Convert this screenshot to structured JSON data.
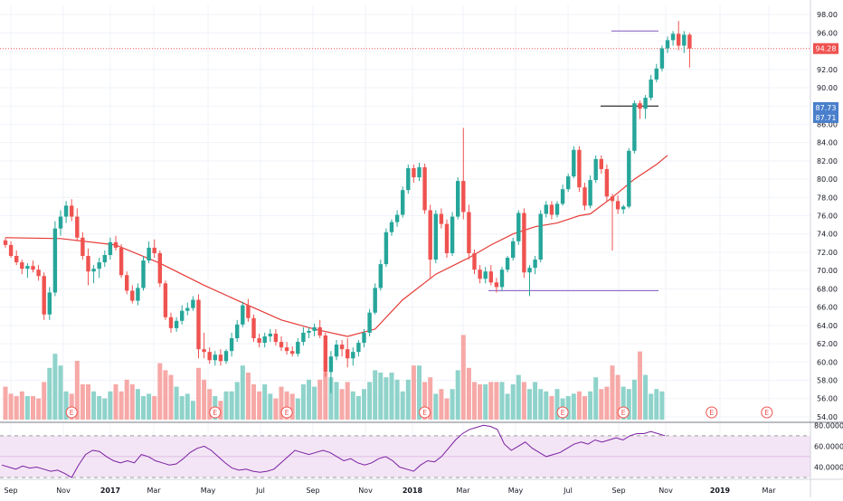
{
  "chart_data": {
    "type": "candlestick",
    "price_axis": {
      "ticks": [
        "98.00",
        "96.00",
        "94.00",
        "92.00",
        "90.00",
        "88.00",
        "86.00",
        "84.00",
        "82.00",
        "80.00",
        "78.00",
        "76.00",
        "74.00",
        "72.00",
        "70.00",
        "68.00",
        "66.00",
        "64.00",
        "62.00",
        "60.00",
        "58.00",
        "56.00",
        "54.00"
      ],
      "range": [
        53.5,
        99
      ],
      "last_price_label": "94.28",
      "last_price": 94.28,
      "marker_labels": [
        "87.73",
        "87.71"
      ],
      "marker_values": [
        87.73,
        87.71
      ]
    },
    "time_axis": {
      "labels": [
        "Sep",
        "Nov",
        "2017",
        "Mar",
        "May",
        "Jul",
        "Sep",
        "Nov",
        "2018",
        "Mar",
        "May",
        "Jul",
        "Sep",
        "Nov",
        "2019",
        "Mar"
      ],
      "bold_labels": [
        "2017",
        "2018",
        "2019"
      ]
    },
    "candles": [
      [
        73.3,
        73.6,
        72.5,
        72.8
      ],
      [
        72.8,
        73.2,
        71.4,
        71.6
      ],
      [
        71.6,
        72.2,
        70.6,
        70.9
      ],
      [
        70.9,
        71.2,
        69.6,
        70.2
      ],
      [
        70.2,
        70.8,
        69.2,
        70.5
      ],
      [
        70.5,
        71.1,
        69.8,
        70.1
      ],
      [
        70.1,
        70.6,
        68.9,
        69.4
      ],
      [
        69.4,
        69.8,
        64.6,
        65.2
      ],
      [
        65.2,
        68.2,
        64.6,
        67.6
      ],
      [
        67.6,
        75.4,
        67.2,
        74.6
      ],
      [
        74.6,
        76.6,
        73.8,
        75.9
      ],
      [
        75.9,
        77.6,
        75.2,
        77.1
      ],
      [
        77.1,
        77.8,
        75.4,
        75.9
      ],
      [
        75.9,
        76.8,
        73.2,
        73.6
      ],
      [
        73.6,
        74.2,
        71.2,
        71.6
      ],
      [
        71.6,
        72.4,
        68.4,
        69.9
      ],
      [
        69.9,
        70.6,
        68.6,
        70.2
      ],
      [
        70.2,
        71.4,
        69.2,
        70.9
      ],
      [
        70.9,
        72.2,
        70.4,
        71.7
      ],
      [
        71.7,
        73.6,
        71.2,
        73.1
      ],
      [
        73.1,
        73.8,
        72.2,
        72.5
      ],
      [
        72.5,
        72.9,
        69.2,
        69.5
      ],
      [
        69.5,
        69.9,
        67.4,
        67.8
      ],
      [
        67.8,
        68.4,
        66.4,
        66.7
      ],
      [
        66.7,
        68.6,
        66.2,
        68.1
      ],
      [
        68.1,
        71.6,
        67.8,
        71.1
      ],
      [
        71.1,
        73.2,
        70.8,
        72.5
      ],
      [
        72.5,
        73.4,
        71.4,
        71.9
      ],
      [
        71.9,
        72.2,
        68.2,
        68.6
      ],
      [
        68.6,
        68.9,
        64.6,
        64.9
      ],
      [
        64.9,
        65.4,
        63.2,
        63.7
      ],
      [
        63.7,
        64.9,
        63.3,
        64.5
      ],
      [
        64.5,
        66.2,
        64.1,
        65.6
      ],
      [
        65.6,
        66.5,
        65.1,
        65.9
      ],
      [
        65.9,
        67.2,
        65.6,
        66.8
      ],
      [
        66.8,
        67.4,
        60.4,
        61.4
      ],
      [
        61.4,
        63.2,
        60.4,
        61.1
      ],
      [
        61.1,
        61.6,
        59.8,
        60.2
      ],
      [
        60.2,
        61.2,
        59.6,
        60.8
      ],
      [
        60.8,
        61.4,
        59.6,
        60.1
      ],
      [
        60.1,
        61.4,
        59.8,
        61.2
      ],
      [
        61.2,
        63.2,
        60.6,
        62.6
      ],
      [
        62.6,
        64.6,
        62.2,
        64.1
      ],
      [
        64.1,
        66.6,
        63.8,
        66.2
      ],
      [
        66.2,
        66.9,
        64.4,
        64.8
      ],
      [
        64.8,
        65.2,
        62.2,
        62.6
      ],
      [
        62.6,
        63.1,
        61.6,
        62.1
      ],
      [
        62.1,
        63.2,
        61.6,
        62.8
      ],
      [
        62.8,
        63.6,
        62.2,
        63.1
      ],
      [
        63.1,
        63.6,
        61.8,
        62.2
      ],
      [
        62.2,
        62.8,
        61.2,
        61.6
      ],
      [
        61.6,
        62.2,
        60.8,
        61.2
      ],
      [
        61.2,
        61.7,
        60.6,
        60.9
      ],
      [
        60.9,
        62.6,
        60.6,
        62.2
      ],
      [
        62.2,
        63.8,
        61.8,
        63.2
      ],
      [
        63.2,
        63.8,
        62.6,
        63.4
      ],
      [
        63.4,
        64.2,
        62.8,
        63.8
      ],
      [
        63.8,
        64.6,
        62.6,
        62.9
      ],
      [
        62.9,
        63.2,
        58.4,
        58.9
      ],
      [
        58.9,
        61.2,
        56.6,
        60.6
      ],
      [
        60.6,
        62.4,
        60.2,
        61.9
      ],
      [
        61.9,
        62.4,
        60.6,
        61.4
      ],
      [
        61.4,
        62.6,
        59.4,
        60.4
      ],
      [
        60.4,
        61.6,
        59.6,
        61.1
      ],
      [
        61.1,
        62.4,
        60.6,
        62.1
      ],
      [
        62.1,
        63.6,
        61.6,
        63.2
      ],
      [
        63.2,
        65.8,
        62.8,
        65.4
      ],
      [
        65.4,
        68.6,
        65.2,
        68.1
      ],
      [
        68.1,
        71.2,
        67.8,
        70.7
      ],
      [
        70.7,
        74.6,
        70.4,
        74.2
      ],
      [
        74.2,
        75.6,
        73.8,
        75.3
      ],
      [
        75.3,
        76.6,
        74.8,
        76.1
      ],
      [
        76.1,
        79.2,
        75.8,
        78.8
      ],
      [
        78.8,
        81.6,
        78.4,
        81.2
      ],
      [
        81.2,
        81.6,
        79.6,
        80.2
      ],
      [
        80.2,
        81.8,
        79.8,
        81.3
      ],
      [
        81.3,
        81.7,
        76.2,
        76.6
      ],
      [
        76.6,
        77.2,
        69.2,
        71.2
      ],
      [
        71.2,
        76.6,
        70.8,
        76.2
      ],
      [
        76.2,
        76.8,
        74.6,
        75.1
      ],
      [
        75.1,
        75.6,
        71.4,
        71.9
      ],
      [
        71.9,
        76.4,
        71.6,
        75.9
      ],
      [
        75.9,
        80.2,
        75.6,
        79.8
      ],
      [
        79.8,
        85.6,
        75.6,
        76.4
      ],
      [
        76.4,
        77.2,
        71.2,
        71.9
      ],
      [
        71.9,
        72.3,
        69.6,
        70.1
      ],
      [
        70.1,
        70.6,
        68.6,
        69.1
      ],
      [
        69.1,
        70.4,
        68.6,
        69.9
      ],
      [
        69.9,
        70.6,
        68.4,
        68.7
      ],
      [
        68.7,
        69.2,
        67.6,
        68.2
      ],
      [
        68.2,
        70.4,
        67.8,
        70.1
      ],
      [
        70.1,
        71.6,
        69.8,
        71.4
      ],
      [
        71.4,
        73.6,
        71.1,
        73.2
      ],
      [
        73.2,
        76.6,
        72.8,
        76.3
      ],
      [
        76.3,
        76.8,
        69.2,
        69.8
      ],
      [
        69.8,
        70.6,
        67.2,
        70.3
      ],
      [
        70.3,
        71.6,
        69.6,
        71.2
      ],
      [
        71.2,
        76.6,
        70.9,
        76.2
      ],
      [
        76.2,
        77.6,
        75.8,
        77.2
      ],
      [
        77.2,
        77.6,
        75.6,
        76.1
      ],
      [
        76.1,
        77.6,
        75.8,
        77.3
      ],
      [
        77.3,
        79.4,
        77.1,
        78.9
      ],
      [
        78.9,
        80.6,
        78.6,
        80.3
      ],
      [
        80.3,
        83.6,
        80.1,
        83.2
      ],
      [
        83.2,
        83.6,
        78.6,
        79.1
      ],
      [
        79.1,
        79.6,
        76.6,
        77.1
      ],
      [
        77.1,
        80.4,
        76.8,
        79.9
      ],
      [
        79.9,
        82.6,
        79.6,
        82.2
      ],
      [
        82.2,
        82.6,
        80.6,
        81.1
      ],
      [
        81.1,
        81.6,
        77.6,
        78.1
      ],
      [
        78.1,
        78.4,
        72.2,
        77.6
      ],
      [
        77.6,
        78.2,
        76.2,
        76.7
      ],
      [
        76.7,
        77.2,
        76.2,
        77.0
      ],
      [
        77.0,
        83.4,
        76.8,
        83.1
      ],
      [
        83.1,
        88.6,
        82.8,
        88.3
      ],
      [
        88.3,
        88.6,
        86.6,
        87.7
      ],
      [
        87.7,
        89.2,
        86.6,
        88.9
      ],
      [
        88.9,
        91.4,
        88.6,
        90.9
      ],
      [
        90.9,
        92.6,
        90.6,
        92.1
      ],
      [
        92.1,
        94.6,
        91.8,
        94.3
      ],
      [
        94.3,
        95.6,
        93.8,
        95.2
      ],
      [
        95.2,
        96.2,
        94.6,
        95.9
      ],
      [
        95.9,
        97.3,
        94.1,
        94.6
      ],
      [
        94.6,
        96.2,
        93.8,
        95.8
      ],
      [
        95.8,
        96.0,
        92.2,
        94.28
      ]
    ],
    "volumes": [
      1.4,
      1.1,
      1.0,
      1.2,
      1.0,
      1.0,
      0.9,
      1.6,
      2.2,
      2.8,
      2.3,
      1.2,
      1.1,
      2.5,
      1.5,
      1.5,
      1.2,
      1.0,
      0.9,
      1.2,
      1.5,
      1.2,
      1.7,
      1.5,
      1.3,
      1.0,
      1.1,
      1.0,
      2.4,
      2.1,
      1.9,
      1.4,
      1.0,
      1.1,
      0.8,
      2.2,
      1.7,
      1.3,
      1.0,
      0.8,
      1.2,
      1.2,
      1.6,
      2.3,
      2.0,
      1.5,
      1.2,
      1.5,
      1.1,
      0.9,
      1.4,
      1.2,
      1.1,
      0.9,
      1.5,
      1.7,
      1.4,
      1.7,
      2.0,
      1.8,
      1.6,
      1.3,
      1.6,
      1.2,
      1.0,
      1.3,
      1.6,
      2.1,
      2.0,
      1.8,
      2.0,
      1.7,
      1.2,
      1.7,
      2.3,
      2.3,
      1.6,
      1.8,
      1.1,
      1.3,
      0.9,
      1.3,
      2.1,
      3.6,
      2.2,
      1.6,
      1.5,
      1.5,
      1.6,
      1.6,
      1.6,
      1.1,
      1.5,
      1.9,
      1.6,
      1.3,
      1.6,
      1.3,
      1.2,
      1.0,
      1.3,
      0.9,
      1.0,
      1.1,
      1.2,
      1.0,
      1.2,
      1.8,
      1.3,
      1.4,
      2.3,
      1.9,
      1.4,
      1.3,
      1.7,
      2.9,
      1.9,
      1.1,
      1.3,
      1.2
    ],
    "moving_average": [
      [
        0,
        73.6
      ],
      [
        10,
        73.5
      ],
      [
        20,
        72.8
      ],
      [
        28,
        70.8
      ],
      [
        36,
        68.4
      ],
      [
        44,
        66.2
      ],
      [
        50,
        64.6
      ],
      [
        56,
        63.6
      ],
      [
        62,
        62.8
      ],
      [
        67,
        63.6
      ],
      [
        72,
        66.8
      ],
      [
        78,
        69.6
      ],
      [
        84,
        71.4
      ],
      [
        88,
        72.8
      ],
      [
        92,
        74.0
      ],
      [
        96,
        74.8
      ],
      [
        100,
        75.2
      ],
      [
        104,
        76.0
      ],
      [
        106,
        76.2
      ],
      [
        110,
        78.0
      ],
      [
        114,
        80.0
      ],
      [
        118,
        81.6
      ],
      [
        120,
        82.6
      ]
    ],
    "earnings_markers": [
      "E",
      "E",
      "E",
      "E",
      "E",
      "E",
      "E",
      "E",
      "E"
    ],
    "earnings_indices": [
      12,
      38,
      51,
      76,
      101,
      112,
      128,
      138,
      158
    ],
    "horizontal_levels": [
      {
        "value": 96.2,
        "color": "#7e57c2"
      },
      {
        "value": 88.0,
        "color": "#000000"
      },
      {
        "value": 67.8,
        "color": "#7e57c2"
      }
    ],
    "rsi": {
      "ticks": [
        "80.0000",
        "60.0000",
        "40.0000"
      ],
      "range": [
        30,
        82
      ],
      "band": [
        70,
        30
      ],
      "values": [
        42,
        40,
        38,
        41,
        39,
        40,
        38,
        36,
        37,
        34,
        30,
        42,
        52,
        56,
        55,
        50,
        46,
        44,
        46,
        44,
        52,
        50,
        46,
        44,
        42,
        43,
        48,
        54,
        58,
        60,
        56,
        50,
        44,
        39,
        37,
        38,
        36,
        35,
        36,
        38,
        44,
        50,
        56,
        54,
        52,
        54,
        56,
        54,
        50,
        46,
        48,
        44,
        42,
        44,
        48,
        50,
        46,
        40,
        38,
        36,
        42,
        46,
        45,
        50,
        58,
        66,
        72,
        76,
        78,
        80,
        79,
        76,
        62,
        56,
        60,
        64,
        58,
        54,
        50,
        52,
        54,
        58,
        62,
        64,
        62,
        66,
        64,
        66,
        68,
        66,
        70,
        72,
        72,
        74,
        72,
        70
      ]
    },
    "colors": {
      "up": "#26a69a",
      "down": "#ef5350",
      "up_volume": "#8fd3cb",
      "down_volume": "#f6a9a7",
      "ma": "#e53935",
      "rsi_line": "#7b1fa2",
      "rsi_band": "#f3e5f5",
      "price_label_bg": "#ef5350",
      "marker_label_bg": "#4a7fcb"
    }
  }
}
